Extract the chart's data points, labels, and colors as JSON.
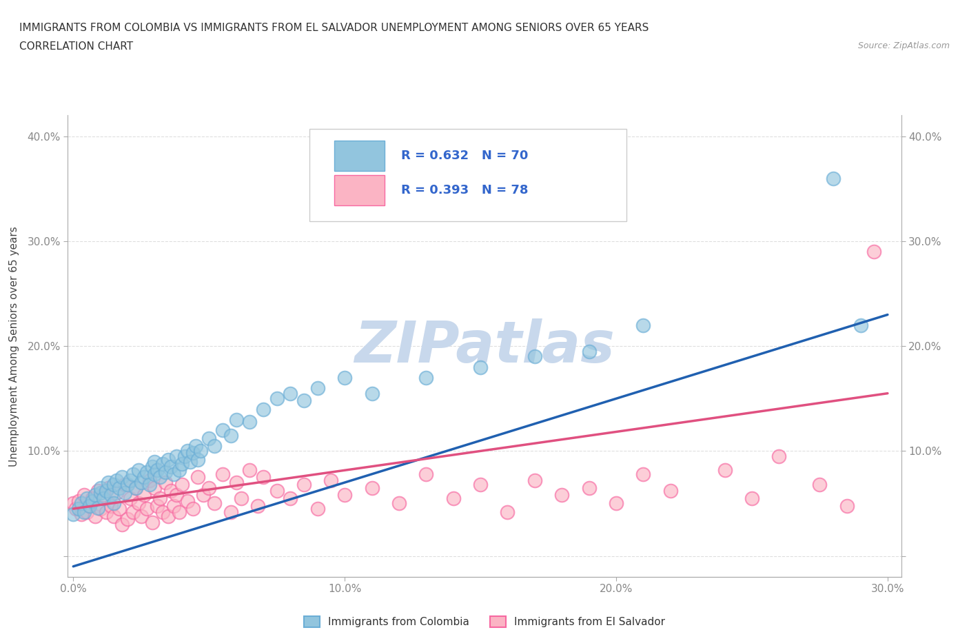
{
  "title_line1": "IMMIGRANTS FROM COLOMBIA VS IMMIGRANTS FROM EL SALVADOR UNEMPLOYMENT AMONG SENIORS OVER 65 YEARS",
  "title_line2": "CORRELATION CHART",
  "source_text": "Source: ZipAtlas.com",
  "ylabel": "Unemployment Among Seniors over 65 years",
  "xlim": [
    -0.002,
    0.305
  ],
  "ylim": [
    -0.02,
    0.42
  ],
  "xticks": [
    0.0,
    0.1,
    0.2,
    0.3
  ],
  "xtick_labels": [
    "0.0%",
    "10.0%",
    "20.0%",
    "30.0%"
  ],
  "yticks": [
    0.0,
    0.1,
    0.2,
    0.3,
    0.4
  ],
  "ytick_labels": [
    "",
    "10.0%",
    "20.0%",
    "30.0%",
    "40.0%"
  ],
  "colombia_color": "#92c5de",
  "colombia_edge_color": "#6baed6",
  "elsalvador_color": "#fbb4c4",
  "elsalvador_edge_color": "#f768a1",
  "colombia_R": 0.632,
  "colombia_N": 70,
  "elsalvador_R": 0.393,
  "elsalvador_N": 78,
  "colombia_scatter_x": [
    0.0,
    0.002,
    0.003,
    0.004,
    0.005,
    0.006,
    0.007,
    0.008,
    0.009,
    0.01,
    0.01,
    0.011,
    0.012,
    0.013,
    0.014,
    0.015,
    0.015,
    0.016,
    0.017,
    0.018,
    0.019,
    0.02,
    0.021,
    0.022,
    0.023,
    0.024,
    0.025,
    0.026,
    0.027,
    0.028,
    0.029,
    0.03,
    0.03,
    0.031,
    0.032,
    0.033,
    0.034,
    0.035,
    0.036,
    0.037,
    0.038,
    0.039,
    0.04,
    0.041,
    0.042,
    0.043,
    0.044,
    0.045,
    0.046,
    0.047,
    0.05,
    0.052,
    0.055,
    0.058,
    0.06,
    0.065,
    0.07,
    0.075,
    0.08,
    0.085,
    0.09,
    0.1,
    0.11,
    0.13,
    0.15,
    0.17,
    0.19,
    0.21,
    0.28,
    0.29
  ],
  "colombia_scatter_y": [
    0.04,
    0.045,
    0.05,
    0.042,
    0.055,
    0.048,
    0.052,
    0.058,
    0.046,
    0.06,
    0.065,
    0.055,
    0.062,
    0.07,
    0.058,
    0.05,
    0.068,
    0.072,
    0.065,
    0.075,
    0.06,
    0.068,
    0.072,
    0.078,
    0.065,
    0.082,
    0.07,
    0.075,
    0.08,
    0.068,
    0.085,
    0.078,
    0.09,
    0.082,
    0.075,
    0.088,
    0.08,
    0.092,
    0.085,
    0.078,
    0.095,
    0.082,
    0.088,
    0.095,
    0.1,
    0.09,
    0.098,
    0.105,
    0.092,
    0.1,
    0.112,
    0.105,
    0.12,
    0.115,
    0.13,
    0.128,
    0.14,
    0.15,
    0.155,
    0.148,
    0.16,
    0.17,
    0.155,
    0.17,
    0.18,
    0.19,
    0.195,
    0.22,
    0.36,
    0.22
  ],
  "elsalvador_scatter_x": [
    0.0,
    0.001,
    0.002,
    0.003,
    0.004,
    0.005,
    0.006,
    0.007,
    0.008,
    0.009,
    0.01,
    0.011,
    0.012,
    0.013,
    0.014,
    0.015,
    0.016,
    0.017,
    0.018,
    0.019,
    0.02,
    0.021,
    0.022,
    0.023,
    0.024,
    0.025,
    0.026,
    0.027,
    0.028,
    0.029,
    0.03,
    0.031,
    0.032,
    0.033,
    0.034,
    0.035,
    0.036,
    0.037,
    0.038,
    0.039,
    0.04,
    0.042,
    0.044,
    0.046,
    0.048,
    0.05,
    0.052,
    0.055,
    0.058,
    0.06,
    0.062,
    0.065,
    0.068,
    0.07,
    0.075,
    0.08,
    0.085,
    0.09,
    0.095,
    0.1,
    0.11,
    0.12,
    0.13,
    0.14,
    0.15,
    0.16,
    0.17,
    0.18,
    0.19,
    0.2,
    0.21,
    0.22,
    0.24,
    0.25,
    0.26,
    0.275,
    0.285,
    0.295
  ],
  "elsalvador_scatter_y": [
    0.05,
    0.045,
    0.052,
    0.04,
    0.058,
    0.042,
    0.048,
    0.055,
    0.038,
    0.062,
    0.045,
    0.058,
    0.042,
    0.065,
    0.048,
    0.038,
    0.06,
    0.045,
    0.03,
    0.068,
    0.035,
    0.055,
    0.042,
    0.065,
    0.05,
    0.038,
    0.058,
    0.045,
    0.072,
    0.032,
    0.065,
    0.048,
    0.055,
    0.042,
    0.07,
    0.038,
    0.062,
    0.048,
    0.058,
    0.042,
    0.068,
    0.052,
    0.045,
    0.075,
    0.058,
    0.065,
    0.05,
    0.078,
    0.042,
    0.07,
    0.055,
    0.082,
    0.048,
    0.075,
    0.062,
    0.055,
    0.068,
    0.045,
    0.072,
    0.058,
    0.065,
    0.05,
    0.078,
    0.055,
    0.068,
    0.042,
    0.072,
    0.058,
    0.065,
    0.05,
    0.078,
    0.062,
    0.082,
    0.055,
    0.095,
    0.068,
    0.048,
    0.29
  ],
  "colombia_trend_x": [
    0.0,
    0.3
  ],
  "colombia_trend_y": [
    -0.01,
    0.23
  ],
  "elsalvador_trend_x": [
    0.0,
    0.3
  ],
  "elsalvador_trend_y": [
    0.045,
    0.155
  ],
  "grid_color": "#d0d0d0",
  "background_color": "#ffffff",
  "watermark_text": "ZIPatlas",
  "watermark_color": "#c8d8ec",
  "legend_box_color": "#f0f4fa",
  "legend_text_color": "#3366cc",
  "title_color": "#333333",
  "axis_color": "#888888"
}
